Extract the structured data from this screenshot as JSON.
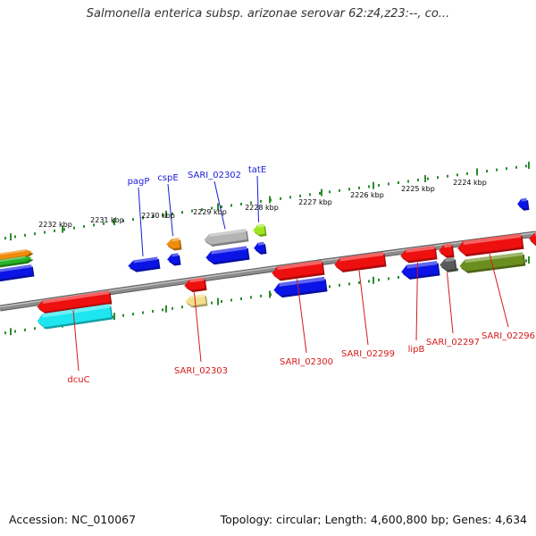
{
  "title": "Salmonella enterica subsp. arizonae serovar 62:z4,z23:--, co...",
  "footer": {
    "accession": "Accession: NC_010067",
    "summary": "Topology: circular; Length: 4,600,800 bp; Genes: 4,634"
  },
  "colors": {
    "backbone": "#8c8c8c",
    "tick": "#2e8b2e",
    "label_top": "#1a1ad6",
    "label_bottom": "#d61a1a",
    "red": "#ee0f0f",
    "blue": "#0a14e6",
    "orange": "#f08c0a",
    "gray": "#b4b4b4",
    "darkgray": "#5a5a5a",
    "lime": "#a0e61e",
    "olive": "#6b8f1e",
    "cyan": "#1ee6f0",
    "khaki": "#f0e08c",
    "green": "#28b428"
  },
  "scale": {
    "unit": "kbp",
    "labels": [
      {
        "text": "2232 kbp"
      },
      {
        "text": "2231 kbp"
      },
      {
        "text": "2230 kbp"
      },
      {
        "text": "2229 kbp"
      },
      {
        "text": "2228 kbp"
      },
      {
        "text": "2227 kbp"
      },
      {
        "text": "2226 kbp"
      },
      {
        "text": "2225 kbp"
      },
      {
        "text": "2224 kbp"
      }
    ]
  },
  "gene_labels": {
    "top": [
      "pagP",
      "cspE",
      "SARI_02302",
      "tatE"
    ],
    "bottom": [
      "dcuC",
      "SARI_02303",
      "SARI_02300",
      "SARI_02299",
      "lipB",
      "SARI_02297",
      "SARI_02296"
    ]
  },
  "genes": [
    {
      "strand": "+",
      "color": "blue",
      "direction": "left"
    },
    {
      "strand": "+",
      "color": "orange",
      "direction": "right"
    },
    {
      "strand": "+",
      "color": "green",
      "direction": "right"
    },
    {
      "strand": "+",
      "color": "blue",
      "direction": "left",
      "label": "pagP"
    },
    {
      "strand": "+",
      "color": "orange",
      "direction": "left",
      "label": "cspE"
    },
    {
      "strand": "+",
      "color": "blue",
      "direction": "left"
    },
    {
      "strand": "+",
      "color": "gray",
      "direction": "left",
      "label": "SARI_02302"
    },
    {
      "strand": "+",
      "color": "blue",
      "direction": "left"
    },
    {
      "strand": "+",
      "color": "lime",
      "direction": "left",
      "label": "tatE"
    },
    {
      "strand": "+",
      "color": "blue",
      "direction": "left"
    },
    {
      "strand": "+",
      "color": "blue",
      "direction": "left"
    },
    {
      "strand": "-",
      "color": "red",
      "direction": "left",
      "label": "dcuC"
    },
    {
      "strand": "-",
      "color": "cyan",
      "direction": "left"
    },
    {
      "strand": "-",
      "color": "red",
      "direction": "left",
      "label": "SARI_02303"
    },
    {
      "strand": "-",
      "color": "khaki",
      "direction": "left"
    },
    {
      "strand": "-",
      "color": "red",
      "direction": "left",
      "label": "SARI_02300"
    },
    {
      "strand": "-",
      "color": "blue",
      "direction": "left"
    },
    {
      "strand": "-",
      "color": "red",
      "direction": "left",
      "label": "SARI_02299"
    },
    {
      "strand": "-",
      "color": "red",
      "direction": "left",
      "label": "lipB"
    },
    {
      "strand": "-",
      "color": "blue",
      "direction": "left"
    },
    {
      "strand": "-",
      "color": "red",
      "direction": "left"
    },
    {
      "strand": "-",
      "color": "darkgray",
      "direction": "left",
      "label": "SARI_02297"
    },
    {
      "strand": "-",
      "color": "red",
      "direction": "left",
      "label": "SARI_02296"
    },
    {
      "strand": "-",
      "color": "olive",
      "direction": "left"
    },
    {
      "strand": "-",
      "color": "red",
      "direction": "left"
    }
  ]
}
